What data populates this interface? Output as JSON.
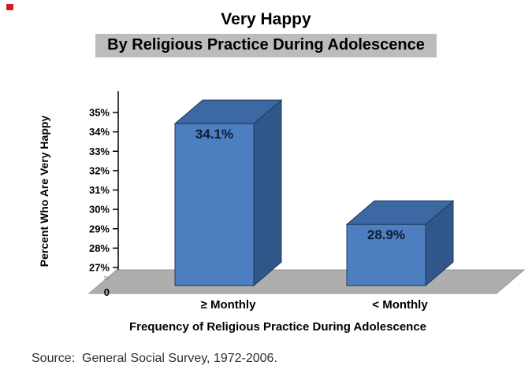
{
  "chart_data": {
    "type": "bar",
    "style": "3d",
    "title": "Very Happy",
    "subtitle": "By Religious Practice During Adolescence",
    "categories": [
      "≥ Monthly",
      "< Monthly"
    ],
    "values": [
      34.1,
      28.9
    ],
    "bar_labels": [
      "34.1%",
      "28.9%"
    ],
    "xlabel": "Frequency of Religious Practice During Adolescence",
    "ylabel": "Percent Who Are Very Happy",
    "y_ticks": [
      {
        "value": 35,
        "label": "35%"
      },
      {
        "value": 34,
        "label": "34%"
      },
      {
        "value": 33,
        "label": "33%"
      },
      {
        "value": 32,
        "label": "32%"
      },
      {
        "value": 31,
        "label": "31%"
      },
      {
        "value": 30,
        "label": "30%"
      },
      {
        "value": 29,
        "label": "29%"
      },
      {
        "value": 28,
        "label": "28%"
      },
      {
        "value": 27,
        "label": "27%"
      }
    ],
    "axis_break_symbol": "≈",
    "zero_label": "0",
    "ylim": [
      27,
      35.5
    ],
    "grid": false,
    "legend": false,
    "colors": {
      "bar_front": "#4d7ebf",
      "bar_top": "#3c69a4",
      "bar_side": "#31568a",
      "bar_outline": "#1d3a5f",
      "floor": "#aeaeae",
      "floor_edge": "#979797",
      "subtitle_bg": "#bcbcbc",
      "value_label": "#0d1b33",
      "axis": "#000000"
    }
  },
  "source_note": "Source:  General Social Survey, 1972-2006."
}
